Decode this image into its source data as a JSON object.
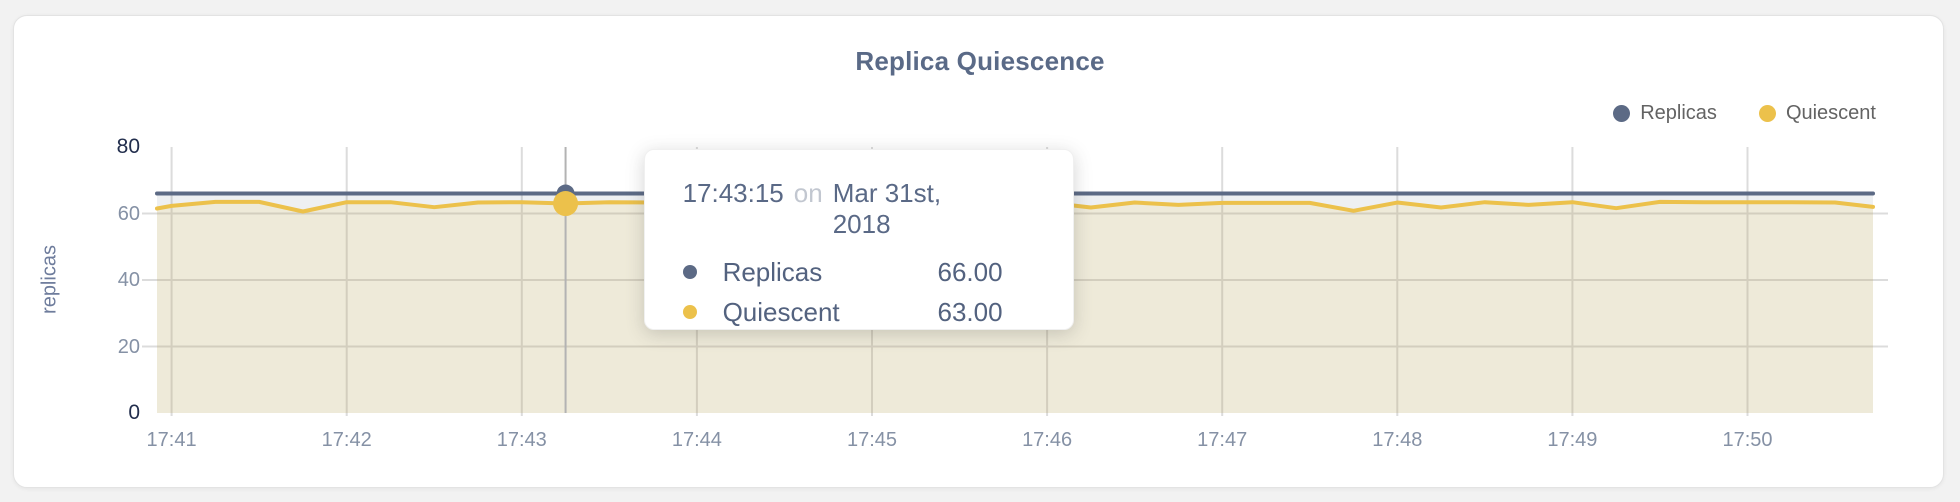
{
  "page": {
    "background": "#f2f2f2",
    "panel_background": "#ffffff"
  },
  "chart_data": {
    "type": "line",
    "title": "Replica Quiescence",
    "ylabel": "replicas",
    "xlabel": "",
    "ylim": [
      0,
      80
    ],
    "grid": true,
    "legend_position": "top-right",
    "x_range": [
      "17:40:55",
      "17:50:43"
    ],
    "colors": {
      "grid": "#dcdcdc",
      "crosshair": "#b3b3b3",
      "axis_text": "#8591a5",
      "axis_text_strong": "#222e4d",
      "title": "#5a6a87",
      "legend_text": "#636363",
      "tooltip_text": "#53627f",
      "tooltip_muted": "#c2c7d0"
    },
    "x_ticks": [
      {
        "label": "17:41",
        "time": "17:41:00"
      },
      {
        "label": "17:42",
        "time": "17:42:00"
      },
      {
        "label": "17:43",
        "time": "17:43:00"
      },
      {
        "label": "17:44",
        "time": "17:44:00"
      },
      {
        "label": "17:45",
        "time": "17:45:00"
      },
      {
        "label": "17:46",
        "time": "17:46:00"
      },
      {
        "label": "17:47",
        "time": "17:47:00"
      },
      {
        "label": "17:48",
        "time": "17:48:00"
      },
      {
        "label": "17:49",
        "time": "17:49:00"
      },
      {
        "label": "17:50",
        "time": "17:50:00"
      }
    ],
    "y_ticks": [
      {
        "label": "80",
        "value": 80,
        "strong": true
      },
      {
        "label": "60",
        "value": 60,
        "strong": false
      },
      {
        "label": "40",
        "value": 40,
        "strong": false
      },
      {
        "label": "20",
        "value": 20,
        "strong": false
      },
      {
        "label": "0",
        "value": 0,
        "strong": true
      }
    ],
    "y_gridlines": [
      20,
      40,
      60
    ],
    "times": [
      "17:40:55",
      "17:41:00",
      "17:41:15",
      "17:41:30",
      "17:41:45",
      "17:42:00",
      "17:42:15",
      "17:42:30",
      "17:42:45",
      "17:43:00",
      "17:43:15",
      "17:43:30",
      "17:43:45",
      "17:44:00",
      "17:44:15",
      "17:44:30",
      "17:44:45",
      "17:45:00",
      "17:45:15",
      "17:45:30",
      "17:45:45",
      "17:46:00",
      "17:46:15",
      "17:46:30",
      "17:46:45",
      "17:47:00",
      "17:47:15",
      "17:47:30",
      "17:47:45",
      "17:48:00",
      "17:48:15",
      "17:48:30",
      "17:48:45",
      "17:49:00",
      "17:49:15",
      "17:49:30",
      "17:49:45",
      "17:50:00",
      "17:50:15",
      "17:50:30",
      "17:50:43"
    ],
    "series": [
      {
        "name": "Replicas",
        "color": "#5c6a85",
        "fill": "rgba(91,104,130,0.10)",
        "line_width": 4,
        "values": [
          66,
          66,
          66,
          66,
          66,
          66,
          66,
          66,
          66,
          66,
          66,
          66,
          66,
          66,
          66,
          66,
          66,
          66,
          66,
          66,
          66,
          66,
          66,
          66,
          66,
          66,
          66,
          66,
          66,
          66,
          66,
          66,
          66,
          66,
          66,
          66,
          66,
          66,
          66,
          66,
          66
        ]
      },
      {
        "name": "Quiescent",
        "color": "#ecc14b",
        "fill": "rgba(238,196,68,0.14)",
        "line_width": 4,
        "values": [
          61.5,
          62.3,
          63.5,
          63.5,
          60.6,
          63.4,
          63.4,
          61.9,
          63.3,
          63.4,
          63.0,
          63.4,
          63.3,
          62.6,
          63.3,
          62.2,
          63.2,
          61.5,
          63.2,
          63.2,
          63.2,
          63.3,
          61.8,
          63.3,
          62.6,
          63.2,
          63.2,
          63.2,
          60.8,
          63.3,
          61.8,
          63.4,
          62.6,
          63.4,
          61.6,
          63.5,
          63.4,
          63.4,
          63.4,
          63.3,
          62.0
        ]
      }
    ],
    "hover": {
      "time": "17:43:15",
      "point_radius": [
        9,
        12.5
      ]
    },
    "tooltip": {
      "time": "17:43:15",
      "conj": "on",
      "date": "Mar 31st, 2018",
      "rows": [
        {
          "name": "Replicas",
          "value": "66.00"
        },
        {
          "name": "Quiescent",
          "value": "63.00"
        }
      ]
    }
  }
}
